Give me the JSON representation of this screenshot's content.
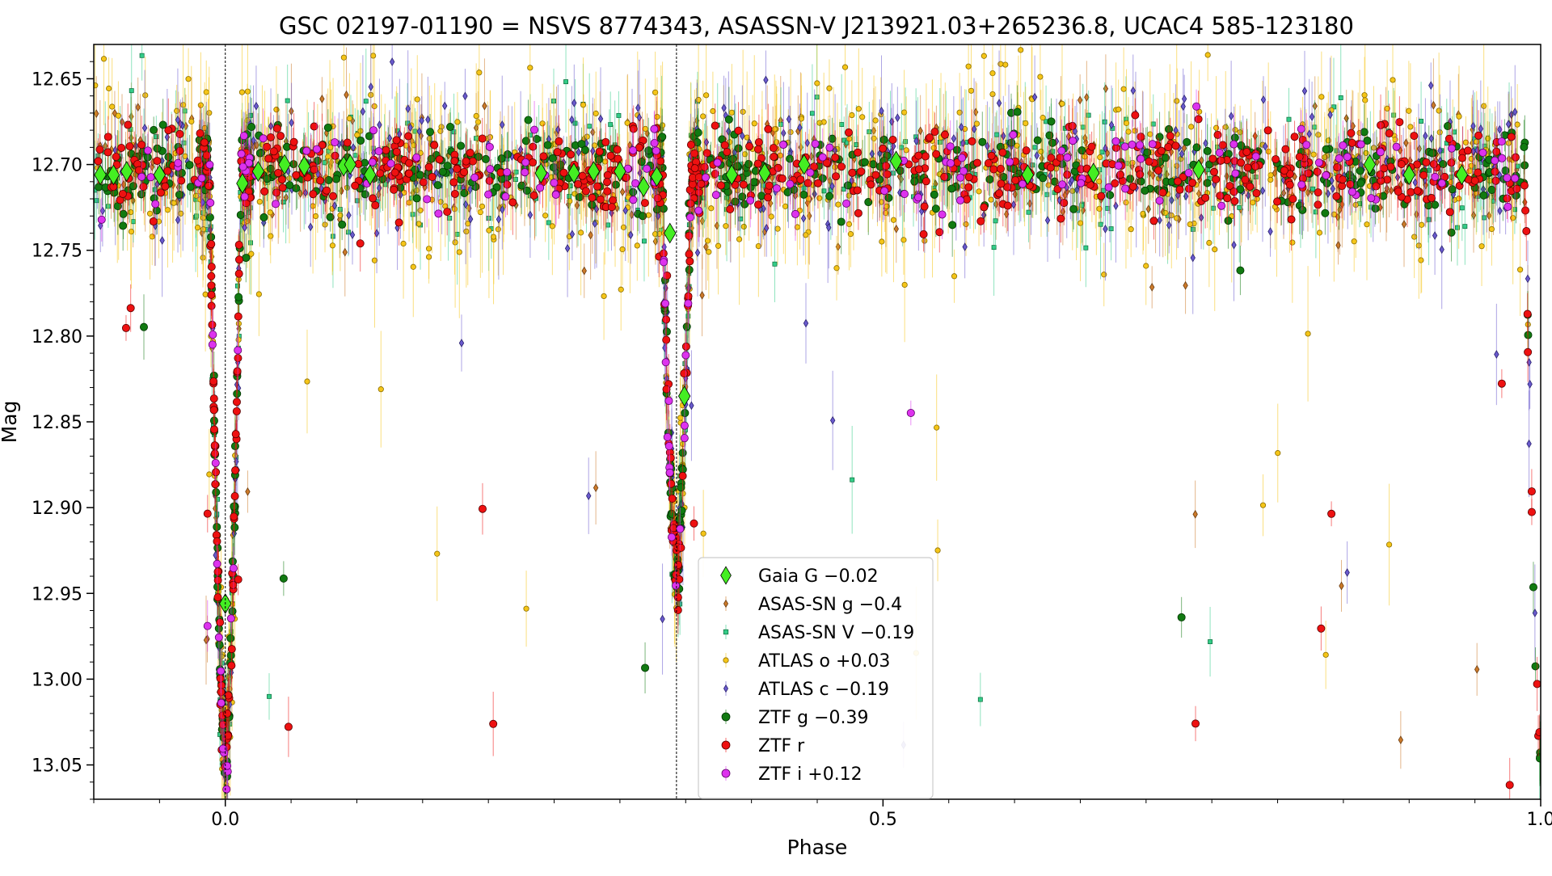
{
  "chart_data": {
    "type": "scatter",
    "title": "GSC 02197-01190 = NSVS 8774343, ASASSN-V J213921.03+265236.8, UCAC4 585-123180",
    "xlabel": "Phase",
    "ylabel": "Mag",
    "xlim": [
      -0.1,
      1.0
    ],
    "ylim": [
      13.07,
      12.63
    ],
    "y_inverted": true,
    "x_ticks": [
      0.0,
      0.5,
      1.0
    ],
    "x_tick_labels": [
      "0.0",
      "0.5",
      "1.0"
    ],
    "y_ticks": [
      12.65,
      12.7,
      12.75,
      12.8,
      12.85,
      12.9,
      12.95,
      13.0,
      13.05
    ],
    "y_tick_labels": [
      "12.65",
      "12.70",
      "12.75",
      "12.80",
      "12.85",
      "12.90",
      "12.95",
      "13.00",
      "13.05"
    ],
    "vlines": [
      0.0,
      0.343
    ],
    "grid": false,
    "legend_position": "bottom-center",
    "light_curve_model": {
      "base_mag": 12.703,
      "primary_eclipse": {
        "phase": 0.0,
        "depth": 0.345,
        "halfwidth": 0.012
      },
      "secondary_eclipse": {
        "phase": 0.343,
        "depth": 0.24,
        "halfwidth": 0.011
      }
    },
    "series": [
      {
        "name": "Gaia G −0.02",
        "marker": "diamond",
        "color": "#44ee22",
        "edge": "#000000",
        "n_points": 30,
        "values": [
          [
            -0.095,
            12.706
          ],
          [
            -0.085,
            12.706
          ],
          [
            -0.075,
            12.704
          ],
          [
            -0.05,
            12.706
          ],
          [
            0.013,
            12.711
          ],
          [
            0.025,
            12.704
          ],
          [
            0.045,
            12.7
          ],
          [
            0.06,
            12.701
          ],
          [
            0.09,
            12.701
          ],
          [
            0.095,
            12.7
          ],
          [
            0.11,
            12.706
          ],
          [
            0.24,
            12.705
          ],
          [
            0.265,
            12.705
          ],
          [
            0.28,
            12.704
          ],
          [
            0.3,
            12.704
          ],
          [
            0.318,
            12.713
          ],
          [
            0.328,
            12.707
          ],
          [
            0.338,
            12.74
          ],
          [
            0.349,
            12.835
          ],
          [
            0.0,
            12.956
          ],
          [
            0.385,
            12.706
          ],
          [
            0.41,
            12.705
          ],
          [
            0.44,
            12.7
          ],
          [
            0.51,
            12.698
          ],
          [
            0.61,
            12.706
          ],
          [
            0.66,
            12.705
          ],
          [
            0.74,
            12.703
          ],
          [
            0.87,
            12.7
          ],
          [
            0.9,
            12.706
          ],
          [
            0.94,
            12.706
          ]
        ]
      },
      {
        "name": "ASAS-SN g −0.4",
        "marker": "diamond-small",
        "color": "#cc7a2a",
        "edge": "#6b3c10",
        "n_points": 420,
        "spread": 0.018
      },
      {
        "name": "ASAS-SN V −0.19",
        "marker": "square",
        "color": "#33cc88",
        "edge": "#0b6b3a",
        "n_points": 420,
        "spread": 0.02
      },
      {
        "name": "ATLAS o +0.03",
        "marker": "circle-small",
        "color": "#f5c518",
        "edge": "#8a6d00",
        "n_points": 720,
        "spread": 0.025
      },
      {
        "name": "ATLAS c −0.19",
        "marker": "diamond-small",
        "color": "#6a5acd",
        "edge": "#2b2270",
        "n_points": 420,
        "spread": 0.022
      },
      {
        "name": "ZTF g −0.39",
        "marker": "circle",
        "color": "#117a11",
        "edge": "#003300",
        "n_points": 620,
        "spread": 0.012
      },
      {
        "name": "ZTF r",
        "marker": "circle",
        "color": "#ee1111",
        "edge": "#550000",
        "n_points": 680,
        "spread": 0.012
      },
      {
        "name": "ZTF i +0.12",
        "marker": "circle",
        "color": "#dd33ee",
        "edge": "#5a0066",
        "n_points": 170,
        "spread": 0.012
      }
    ]
  }
}
